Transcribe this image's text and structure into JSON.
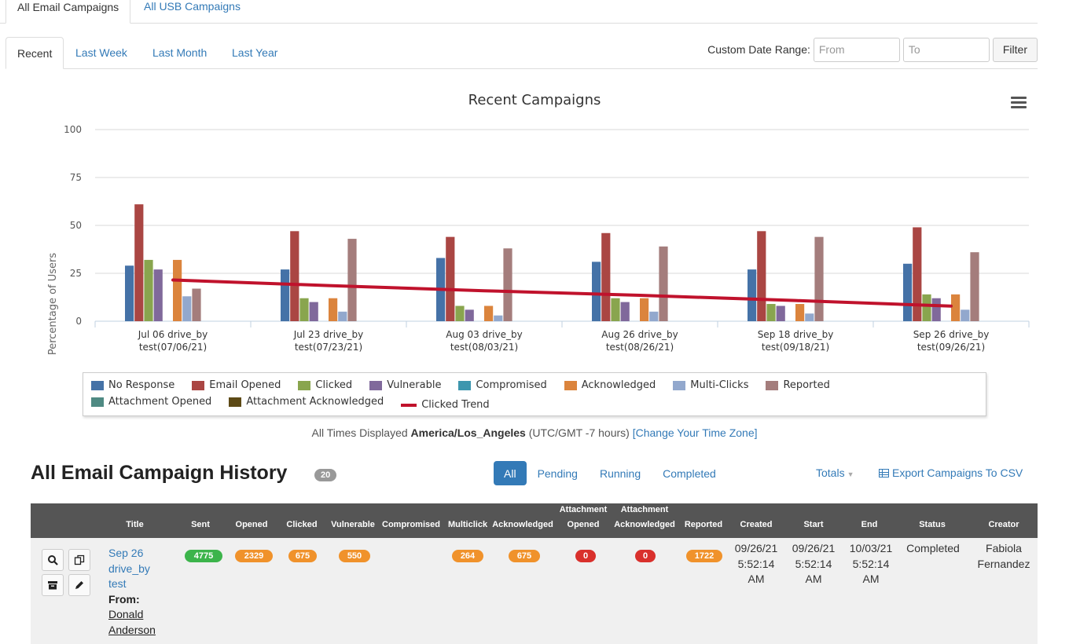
{
  "top_tabs": [
    "All Email Campaigns",
    "All USB Campaigns"
  ],
  "period_tabs": [
    "Recent",
    "Last Week",
    "Last Month",
    "Last Year"
  ],
  "date_range": {
    "label": "Custom Date Range:",
    "from_placeholder": "From",
    "to_placeholder": "To",
    "filter_label": "Filter"
  },
  "chart_data": {
    "type": "bar",
    "title": "Recent Campaigns",
    "ylabel": "Percentage of Users",
    "xlabel": "",
    "ylim": [
      0,
      100
    ],
    "yticks": [
      0,
      25,
      50,
      75,
      100
    ],
    "grid": true,
    "legend_position": "bottom",
    "categories": [
      [
        "Jul 06 drive_by",
        "test(07/06/21)"
      ],
      [
        "Jul 23 drive_by",
        "test(07/23/21)"
      ],
      [
        "Aug 03 drive_by",
        "test(08/03/21)"
      ],
      [
        "Aug 26 drive_by",
        "test(08/26/21)"
      ],
      [
        "Sep 18 drive_by",
        "test(09/18/21)"
      ],
      [
        "Sep 26 drive_by",
        "test(09/26/21)"
      ]
    ],
    "series": [
      {
        "name": "No Response",
        "color": "#4572a7",
        "values": [
          29,
          27,
          33,
          31,
          27,
          30
        ]
      },
      {
        "name": "Email Opened",
        "color": "#aa4643",
        "values": [
          61,
          47,
          44,
          46,
          47,
          49
        ]
      },
      {
        "name": "Clicked",
        "color": "#89a54e",
        "values": [
          32,
          12,
          8,
          12,
          9,
          14
        ]
      },
      {
        "name": "Vulnerable",
        "color": "#80699b",
        "values": [
          27,
          10,
          6,
          10,
          8,
          12
        ]
      },
      {
        "name": "Compromised",
        "color": "#3d96ae",
        "values": [
          0,
          0,
          0,
          0,
          0,
          0
        ]
      },
      {
        "name": "Acknowledged",
        "color": "#db843d",
        "values": [
          32,
          12,
          8,
          12,
          9,
          14
        ]
      },
      {
        "name": "Multi-Clicks",
        "color": "#92a8cd",
        "values": [
          13,
          5,
          3,
          5,
          4,
          6
        ]
      },
      {
        "name": "Reported",
        "color": "#a47d7c",
        "values": [
          17,
          43,
          38,
          39,
          44,
          36
        ]
      },
      {
        "name": "Attachment Opened",
        "color": "#4f8a83",
        "values": [
          0,
          0,
          0,
          0,
          0,
          0
        ]
      },
      {
        "name": "Attachment Acknowledged",
        "color": "#5d4a16",
        "values": [
          0,
          0,
          0,
          0,
          0,
          0
        ]
      }
    ],
    "trend": {
      "name": "Clicked Trend",
      "color": "#c0122c",
      "values": [
        21.5,
        18.6,
        15.9,
        13.5,
        10.8,
        7.9
      ]
    }
  },
  "timezone_note": {
    "prefix": "All Times Displayed",
    "zone": "America/Los_Angeles",
    "offset": "(UTC/GMT -7 hours)",
    "link": "[Change Your Time Zone]"
  },
  "history": {
    "title": "All Email Campaign History",
    "count": "20",
    "filters": [
      "All",
      "Pending",
      "Running",
      "Completed"
    ],
    "totals_label": "Totals",
    "export_label": "Export Campaigns To CSV"
  },
  "table": {
    "headers": {
      "title": "Title",
      "sent": "Sent",
      "opened": "Opened",
      "clicked": "Clicked",
      "vulnerable": "Vulnerable",
      "compromised": "Compromised",
      "multiclick": "Multiclick",
      "acknowledged": "Acknowledged",
      "att_opened_1": "Attachment",
      "att_opened_2": "Opened",
      "att_ack_1": "Attachment",
      "att_ack_2": "Acknowledged",
      "reported": "Reported",
      "created": "Created",
      "start": "Start",
      "end": "End",
      "status": "Status",
      "creator": "Creator"
    },
    "row": {
      "title_lines": [
        "Sep 26",
        "drive_by",
        "test"
      ],
      "from_label": "From:",
      "from_lines": [
        "Donald",
        "Anderson"
      ],
      "sent": "4775",
      "opened": "2329",
      "clicked": "675",
      "vulnerable": "550",
      "multiclick": "264",
      "acknowledged": "675",
      "att_opened": "0",
      "att_ack": "0",
      "reported": "1722",
      "created": [
        "09/26/21",
        "5:52:14",
        "AM"
      ],
      "start": [
        "09/26/21",
        "5:52:14",
        "AM"
      ],
      "end": [
        "10/03/21",
        "5:52:14",
        "AM"
      ],
      "status": "Completed",
      "creator": [
        "Fabiola",
        "Fernandez"
      ]
    }
  }
}
